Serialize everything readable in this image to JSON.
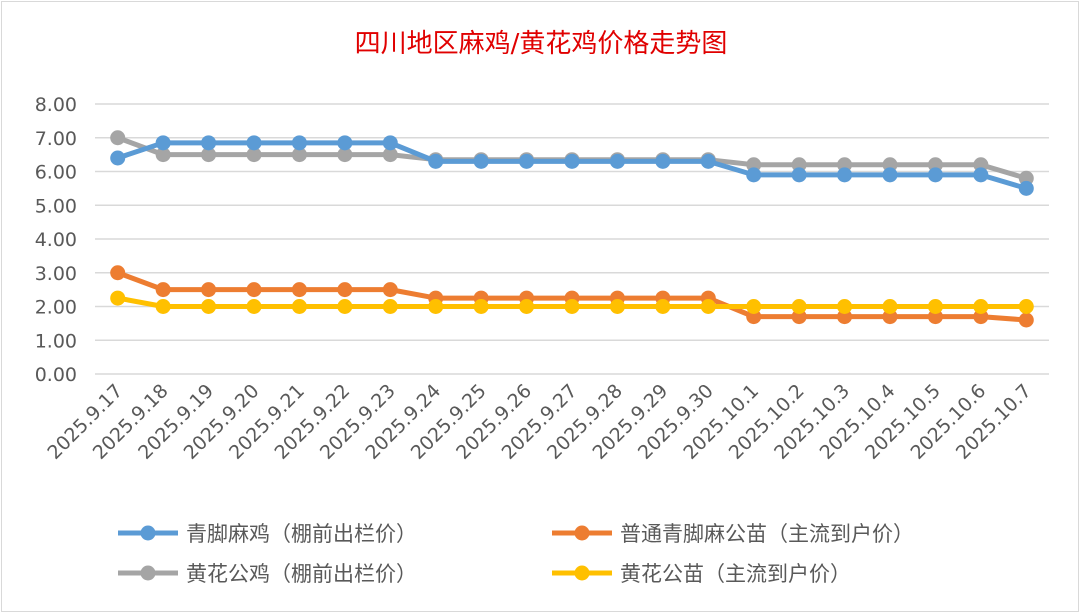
{
  "chart_data": {
    "type": "line",
    "title": "四川地区麻鸡/黄花鸡价格走势图",
    "xlabel": "",
    "ylabel": "",
    "ylim": [
      0,
      8
    ],
    "yticks": [
      "0.00",
      "1.00",
      "2.00",
      "3.00",
      "4.00",
      "5.00",
      "6.00",
      "7.00",
      "8.00"
    ],
    "grid": true,
    "legend_position": "bottom",
    "categories": [
      "2025.9.17",
      "2025.9.18",
      "2025.9.19",
      "2025.9.20",
      "2025.9.21",
      "2025.9.22",
      "2025.9.23",
      "2025.9.24",
      "2025.9.25",
      "2025.9.26",
      "2025.9.27",
      "2025.9.28",
      "2025.9.29",
      "2025.9.30",
      "2025.10.1",
      "2025.10.2",
      "2025.10.3",
      "2025.10.4",
      "2025.10.5",
      "2025.10.6",
      "2025.10.7"
    ],
    "series": [
      {
        "name": "青脚麻鸡（棚前出栏价）",
        "color": "#5b9bd5",
        "values": [
          6.4,
          6.85,
          6.85,
          6.85,
          6.85,
          6.85,
          6.85,
          6.3,
          6.3,
          6.3,
          6.3,
          6.3,
          6.3,
          6.3,
          5.9,
          5.9,
          5.9,
          5.9,
          5.9,
          5.9,
          5.5
        ]
      },
      {
        "name": "普通青脚麻公苗（主流到户价）",
        "color": "#ed7d31",
        "values": [
          3.0,
          2.5,
          2.5,
          2.5,
          2.5,
          2.5,
          2.5,
          2.25,
          2.25,
          2.25,
          2.25,
          2.25,
          2.25,
          2.25,
          1.7,
          1.7,
          1.7,
          1.7,
          1.7,
          1.7,
          1.6
        ]
      },
      {
        "name": "黄花公鸡（棚前出栏价）",
        "color": "#a5a5a5",
        "values": [
          7.0,
          6.5,
          6.5,
          6.5,
          6.5,
          6.5,
          6.5,
          6.35,
          6.35,
          6.35,
          6.35,
          6.35,
          6.35,
          6.35,
          6.2,
          6.2,
          6.2,
          6.2,
          6.2,
          6.2,
          5.8
        ]
      },
      {
        "name": "黄花公苗（主流到户价）",
        "color": "#ffc000",
        "values": [
          2.25,
          2.0,
          2.0,
          2.0,
          2.0,
          2.0,
          2.0,
          2.0,
          2.0,
          2.0,
          2.0,
          2.0,
          2.0,
          2.0,
          2.0,
          2.0,
          2.0,
          2.0,
          2.0,
          2.0,
          2.0
        ]
      }
    ]
  }
}
